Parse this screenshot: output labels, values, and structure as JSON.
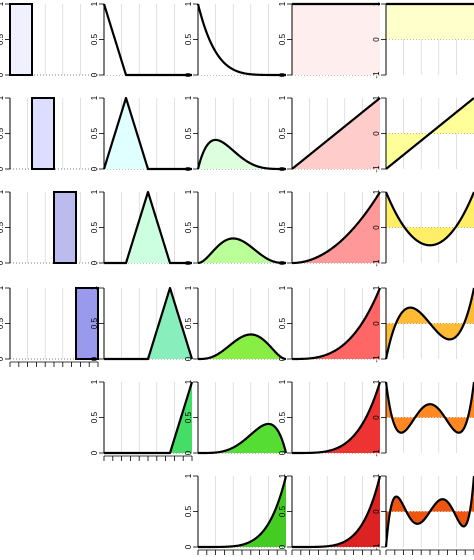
{
  "chart_data": {
    "type": "line",
    "title": "",
    "xlim": [
      0,
      1
    ],
    "grid": true,
    "rows": 6,
    "columns": [
      {
        "name": "",
        "ylim": [
          0,
          1
        ],
        "y_ticks": [
          "0",
          "0.5",
          "1"
        ],
        "panels": [
          {
            "row": 0,
            "family": "box",
            "degree": 0,
            "index": 0,
            "fill": "#f0f0ff"
          },
          {
            "row": 1,
            "family": "box",
            "degree": 0,
            "index": 1,
            "fill": "#ddddff"
          },
          {
            "row": 2,
            "family": "box",
            "degree": 0,
            "index": 2,
            "fill": "#bbbbee"
          },
          {
            "row": 3,
            "family": "box",
            "degree": 0,
            "index": 3,
            "fill": "#9999ee"
          }
        ]
      },
      {
        "name": "",
        "ylim": [
          0,
          1
        ],
        "y_ticks": [
          "0",
          "0.5",
          "1"
        ],
        "panels": [
          {
            "row": 0,
            "family": "bspline",
            "degree": 1,
            "index": 0,
            "fill": "#ffffff"
          },
          {
            "row": 1,
            "family": "bspline",
            "degree": 1,
            "index": 1,
            "fill": "#e0ffff"
          },
          {
            "row": 2,
            "family": "bspline",
            "degree": 1,
            "index": 2,
            "fill": "#ccffe0"
          },
          {
            "row": 3,
            "family": "bspline",
            "degree": 1,
            "index": 3,
            "fill": "#88eebb"
          },
          {
            "row": 4,
            "family": "bspline",
            "degree": 1,
            "index": 4,
            "fill": "#44dd66"
          }
        ]
      },
      {
        "name": "",
        "ylim": [
          0,
          1
        ],
        "y_ticks": [
          "0",
          "0.5",
          "1"
        ],
        "panels": [
          {
            "row": 0,
            "family": "bernstein",
            "degree": 5,
            "index": 0,
            "fill": "#ffffff"
          },
          {
            "row": 1,
            "family": "bernstein",
            "degree": 5,
            "index": 1,
            "fill": "#ddffdd"
          },
          {
            "row": 2,
            "family": "bernstein",
            "degree": 5,
            "index": 2,
            "fill": "#bbff99"
          },
          {
            "row": 3,
            "family": "bernstein",
            "degree": 5,
            "index": 3,
            "fill": "#88ee44"
          },
          {
            "row": 4,
            "family": "bernstein",
            "degree": 5,
            "index": 4,
            "fill": "#55dd33"
          },
          {
            "row": 5,
            "family": "bernstein",
            "degree": 5,
            "index": 5,
            "fill": "#44cc22"
          }
        ]
      },
      {
        "name": "",
        "ylim": [
          0,
          1
        ],
        "y_ticks": [
          "0",
          "0.5",
          "1"
        ],
        "panels": [
          {
            "row": 0,
            "family": "power",
            "degree": 0,
            "fill": "#ffeeee"
          },
          {
            "row": 1,
            "family": "power",
            "degree": 1,
            "fill": "#ffcccc"
          },
          {
            "row": 2,
            "family": "power",
            "degree": 2,
            "fill": "#ff9999"
          },
          {
            "row": 3,
            "family": "power",
            "degree": 3,
            "fill": "#ff6666"
          },
          {
            "row": 4,
            "family": "power",
            "degree": 4,
            "fill": "#ee3333"
          },
          {
            "row": 5,
            "family": "power",
            "degree": 5,
            "fill": "#dd2222"
          }
        ]
      },
      {
        "name": "",
        "ylim": [
          -1,
          1
        ],
        "y_ticks": [
          "-1",
          "0",
          "1"
        ],
        "panels": [
          {
            "row": 0,
            "family": "legendre",
            "degree": 0,
            "fill": "#ffffcc"
          },
          {
            "row": 1,
            "family": "legendre",
            "degree": 1,
            "fill": "#ffff99"
          },
          {
            "row": 2,
            "family": "legendre",
            "degree": 2,
            "fill": "#ffee66"
          },
          {
            "row": 3,
            "family": "legendre",
            "degree": 3,
            "fill": "#ffbb33"
          },
          {
            "row": 4,
            "family": "legendre",
            "degree": 4,
            "fill": "#ff8822"
          },
          {
            "row": 5,
            "family": "legendre",
            "degree": 5,
            "fill": "#ee5511"
          }
        ]
      }
    ]
  }
}
